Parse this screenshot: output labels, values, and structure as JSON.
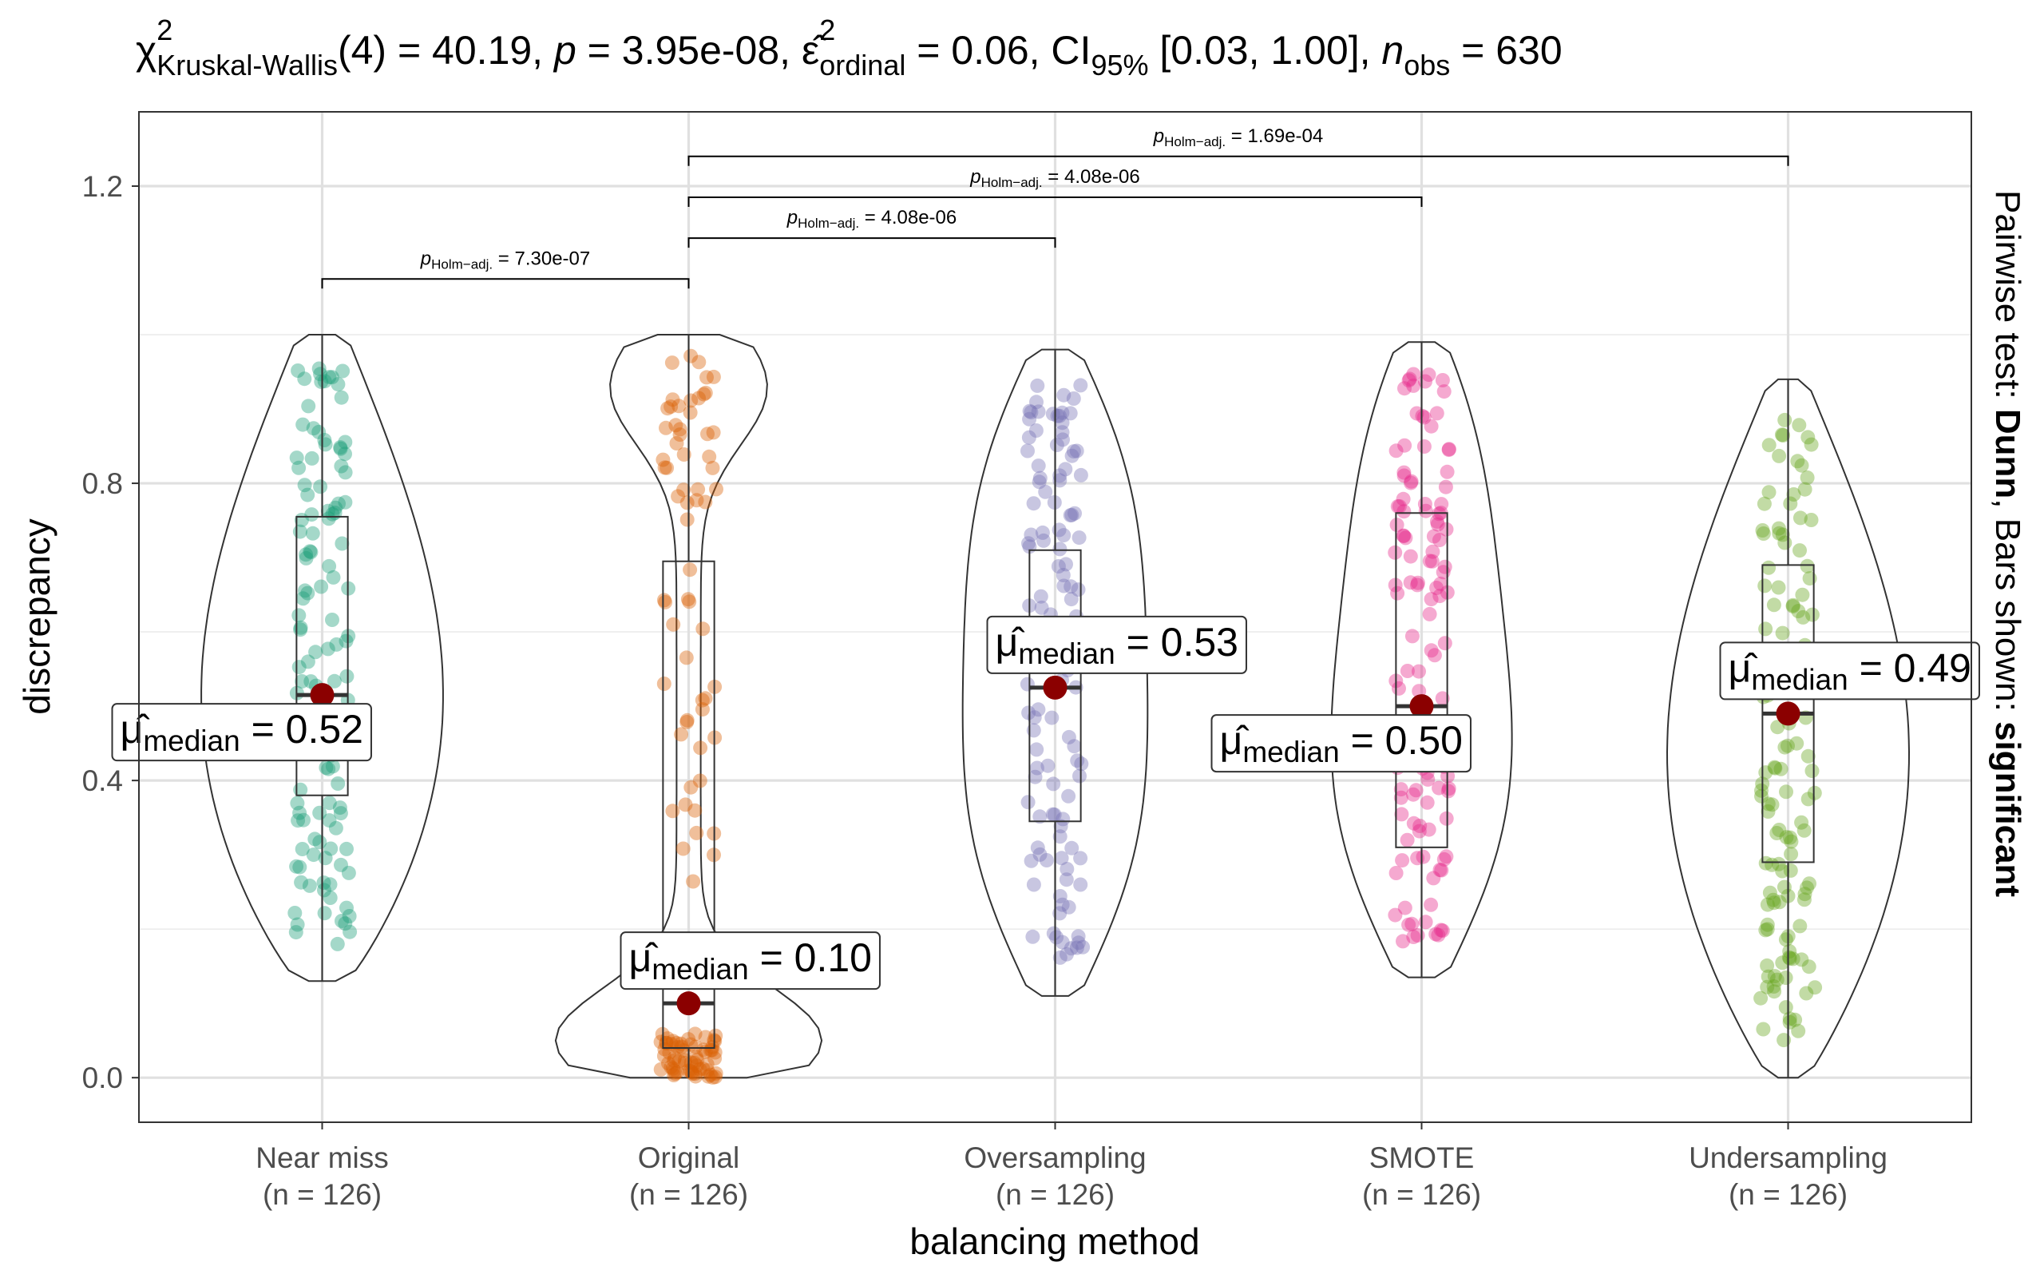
{
  "chart_data": {
    "type": "violin",
    "title": {
      "prefix": "χ",
      "sup": "2",
      "sub_test": "Kruskal-Wallis",
      "df_text": "(4) = 40.19, ",
      "p_symbol": "p",
      "p_text": " = 3.95e-08, ",
      "eps_symbol": "ε̂",
      "eps_sup": "2",
      "eps_sub": "ordinal",
      "eps_text": " = 0.06, CI",
      "ci_sub": "95%",
      "ci_text": " [0.03, 1.00], ",
      "n_symbol": "n",
      "n_sub": "obs",
      "n_text": " = 630"
    },
    "xlabel": "balancing method",
    "ylabel": "discrepancy",
    "ylim": [
      -0.06,
      1.3
    ],
    "yticks": [
      "0.0",
      "0.4",
      "0.8",
      "1.2"
    ],
    "grid": true,
    "caption": {
      "prefix": "Pairwise test: ",
      "test": "Dunn",
      "middle": ", Bars shown: ",
      "bars": "significant"
    },
    "median_label": {
      "symbol": "μ̂",
      "sub": "median"
    },
    "groups": [
      {
        "name": "Near miss",
        "n_label": "(n = 126)",
        "color": "#1b9e77",
        "ymin": 0.13,
        "ymax": 1.0,
        "q1": 0.38,
        "median": 0.515,
        "q3": 0.755,
        "median_text": " = 0.52"
      },
      {
        "name": "Original",
        "n_label": "(n = 126)",
        "color": "#d95f02",
        "ymin": 0.0,
        "ymax": 1.0,
        "q1": 0.04,
        "median": 0.1,
        "q3": 0.695,
        "median_text": " = 0.10"
      },
      {
        "name": "Oversampling",
        "n_label": "(n = 126)",
        "color": "#7570b3",
        "ymin": 0.11,
        "ymax": 0.98,
        "q1": 0.345,
        "median": 0.525,
        "q3": 0.71,
        "median_text": " = 0.53"
      },
      {
        "name": "SMOTE",
        "n_label": "(n = 126)",
        "color": "#e7298a",
        "ymin": 0.135,
        "ymax": 0.99,
        "q1": 0.31,
        "median": 0.5,
        "q3": 0.76,
        "median_text": " = 0.50"
      },
      {
        "name": "Undersampling",
        "n_label": "(n = 126)",
        "color": "#66a61e",
        "ymin": 0.0,
        "ymax": 0.94,
        "q1": 0.29,
        "median": 0.49,
        "q3": 0.69,
        "median_text": " = 0.49"
      }
    ],
    "pairwise": [
      {
        "from": "Near miss",
        "to": "Original",
        "y": 1.075,
        "p_symbol": "p",
        "p_sub": "Holm−adj.",
        "p_text": " = 7.30e-07"
      },
      {
        "from": "Original",
        "to": "Oversampling",
        "y": 1.13,
        "p_symbol": "p",
        "p_sub": "Holm−adj.",
        "p_text": " = 4.08e-06"
      },
      {
        "from": "Original",
        "to": "SMOTE",
        "y": 1.185,
        "p_symbol": "p",
        "p_sub": "Holm−adj.",
        "p_text": " = 4.08e-06"
      },
      {
        "from": "Original",
        "to": "Undersampling",
        "y": 1.24,
        "p_symbol": "p",
        "p_sub": "Holm−adj.",
        "p_text": " = 1.69e-04"
      }
    ]
  }
}
